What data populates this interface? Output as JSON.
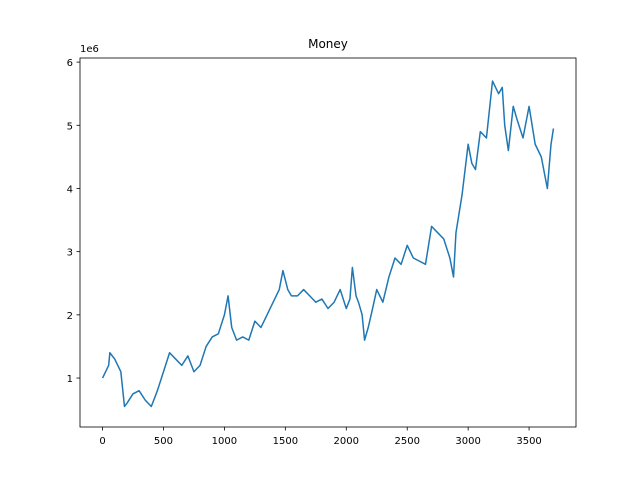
{
  "chart_data": {
    "type": "line",
    "title": "Money",
    "offset_label": "1e6",
    "color": "#1f77b4",
    "x": [
      0,
      50,
      60,
      100,
      150,
      180,
      200,
      250,
      300,
      350,
      400,
      450,
      500,
      550,
      600,
      650,
      700,
      750,
      800,
      850,
      900,
      950,
      1000,
      1030,
      1060,
      1100,
      1150,
      1200,
      1250,
      1300,
      1350,
      1400,
      1450,
      1480,
      1520,
      1550,
      1600,
      1650,
      1700,
      1750,
      1800,
      1850,
      1900,
      1950,
      2000,
      2030,
      2050,
      2080,
      2100,
      2130,
      2150,
      2180,
      2210,
      2250,
      2300,
      2350,
      2400,
      2450,
      2500,
      2550,
      2600,
      2650,
      2700,
      2750,
      2800,
      2850,
      2880,
      2900,
      2950,
      3000,
      3030,
      3060,
      3100,
      3150,
      3200,
      3250,
      3280,
      3300,
      3330,
      3370,
      3400,
      3450,
      3500,
      3550,
      3600,
      3650,
      3680,
      3700
    ],
    "values": [
      1.0,
      1.2,
      1.4,
      1.3,
      1.1,
      0.55,
      0.6,
      0.75,
      0.8,
      0.65,
      0.55,
      0.8,
      1.1,
      1.4,
      1.3,
      1.2,
      1.35,
      1.1,
      1.2,
      1.5,
      1.65,
      1.7,
      2.0,
      2.3,
      1.8,
      1.6,
      1.65,
      1.6,
      1.9,
      1.8,
      2.0,
      2.2,
      2.4,
      2.7,
      2.4,
      2.3,
      2.3,
      2.4,
      2.3,
      2.2,
      2.25,
      2.1,
      2.2,
      2.4,
      2.1,
      2.25,
      2.75,
      2.3,
      2.2,
      2.0,
      1.6,
      1.8,
      2.05,
      2.4,
      2.2,
      2.6,
      2.9,
      2.8,
      3.1,
      2.9,
      2.85,
      2.8,
      3.4,
      3.3,
      3.2,
      2.9,
      2.6,
      3.3,
      3.9,
      4.7,
      4.4,
      4.3,
      4.9,
      4.8,
      5.7,
      5.5,
      5.6,
      5.0,
      4.6,
      5.3,
      5.1,
      4.8,
      5.3,
      4.7,
      4.5,
      4.0,
      4.7,
      4.95
    ],
    "xlim": [
      -185,
      3885
    ],
    "ylim": [
      0.225,
      6.065
    ],
    "xticks": [
      0,
      500,
      1000,
      1500,
      2000,
      2500,
      3000,
      3500
    ],
    "yticks": [
      1,
      2,
      3,
      4,
      5,
      6
    ]
  }
}
